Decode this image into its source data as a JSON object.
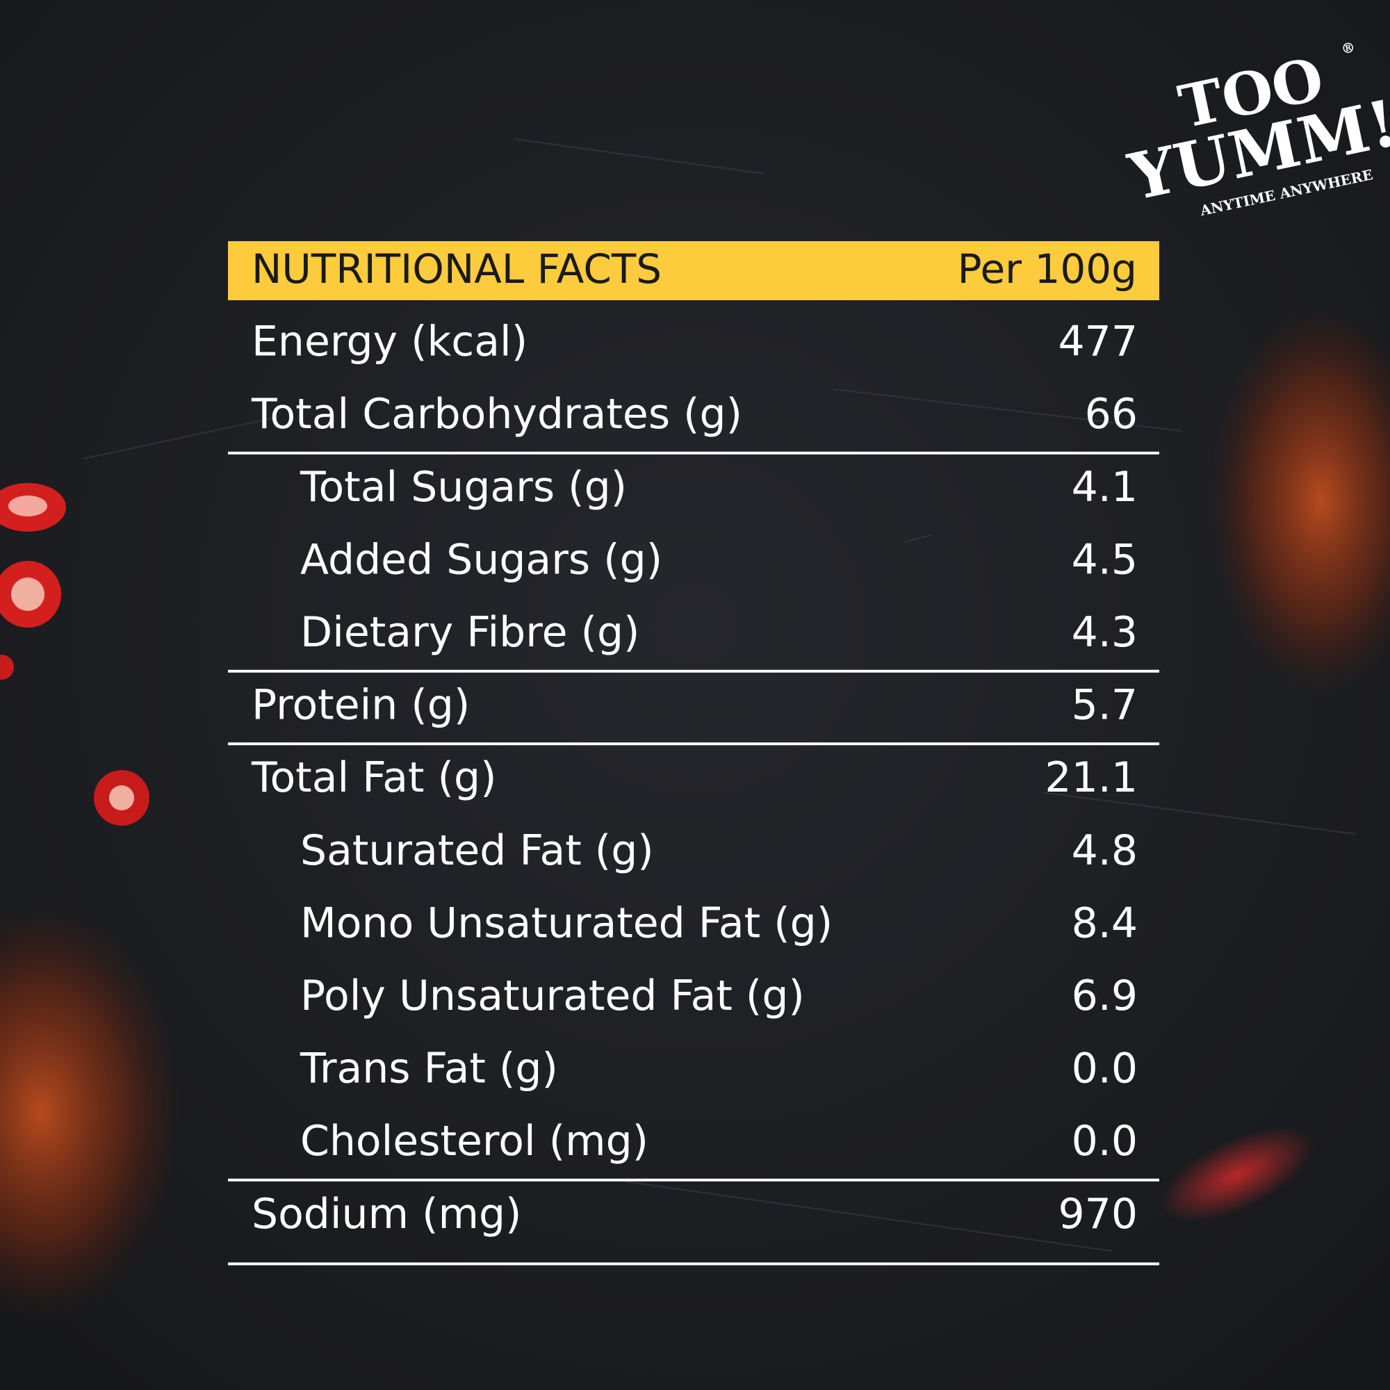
{
  "logo": {
    "line1": "TOO",
    "line2": "YUMM!",
    "tagline": "ANYTIME ANYWHERE",
    "mark": "®"
  },
  "table": {
    "header": {
      "title": "NUTRITIONAL FACTS",
      "unit": "Per 100g"
    },
    "sections": [
      [
        {
          "label": "Energy (kcal)",
          "value": "477"
        },
        {
          "label": "Total Carbohydrates (g)",
          "value": "66"
        }
      ],
      [
        {
          "label": "Total Sugars (g)",
          "value": "4.1"
        },
        {
          "label": "Added Sugars (g)",
          "value": "4.5"
        },
        {
          "label": "Dietary Fibre (g)",
          "value": "4.3"
        }
      ],
      [
        {
          "label": "Protein (g)",
          "value": "5.7"
        }
      ],
      [
        {
          "label": "Total Fat (g)",
          "value": "21.1"
        },
        {
          "label": "Saturated Fat (g)",
          "value": "4.8"
        },
        {
          "label": "Mono Unsaturated Fat (g)",
          "value": "8.4"
        },
        {
          "label": "Poly Unsaturated Fat (g)",
          "value": "6.9"
        },
        {
          "label": "Trans Fat (g)",
          "value": "0.0"
        },
        {
          "label": "Cholesterol (mg)",
          "value": "0.0"
        }
      ],
      [
        {
          "label": "Sodium (mg)",
          "value": "970"
        }
      ]
    ]
  }
}
